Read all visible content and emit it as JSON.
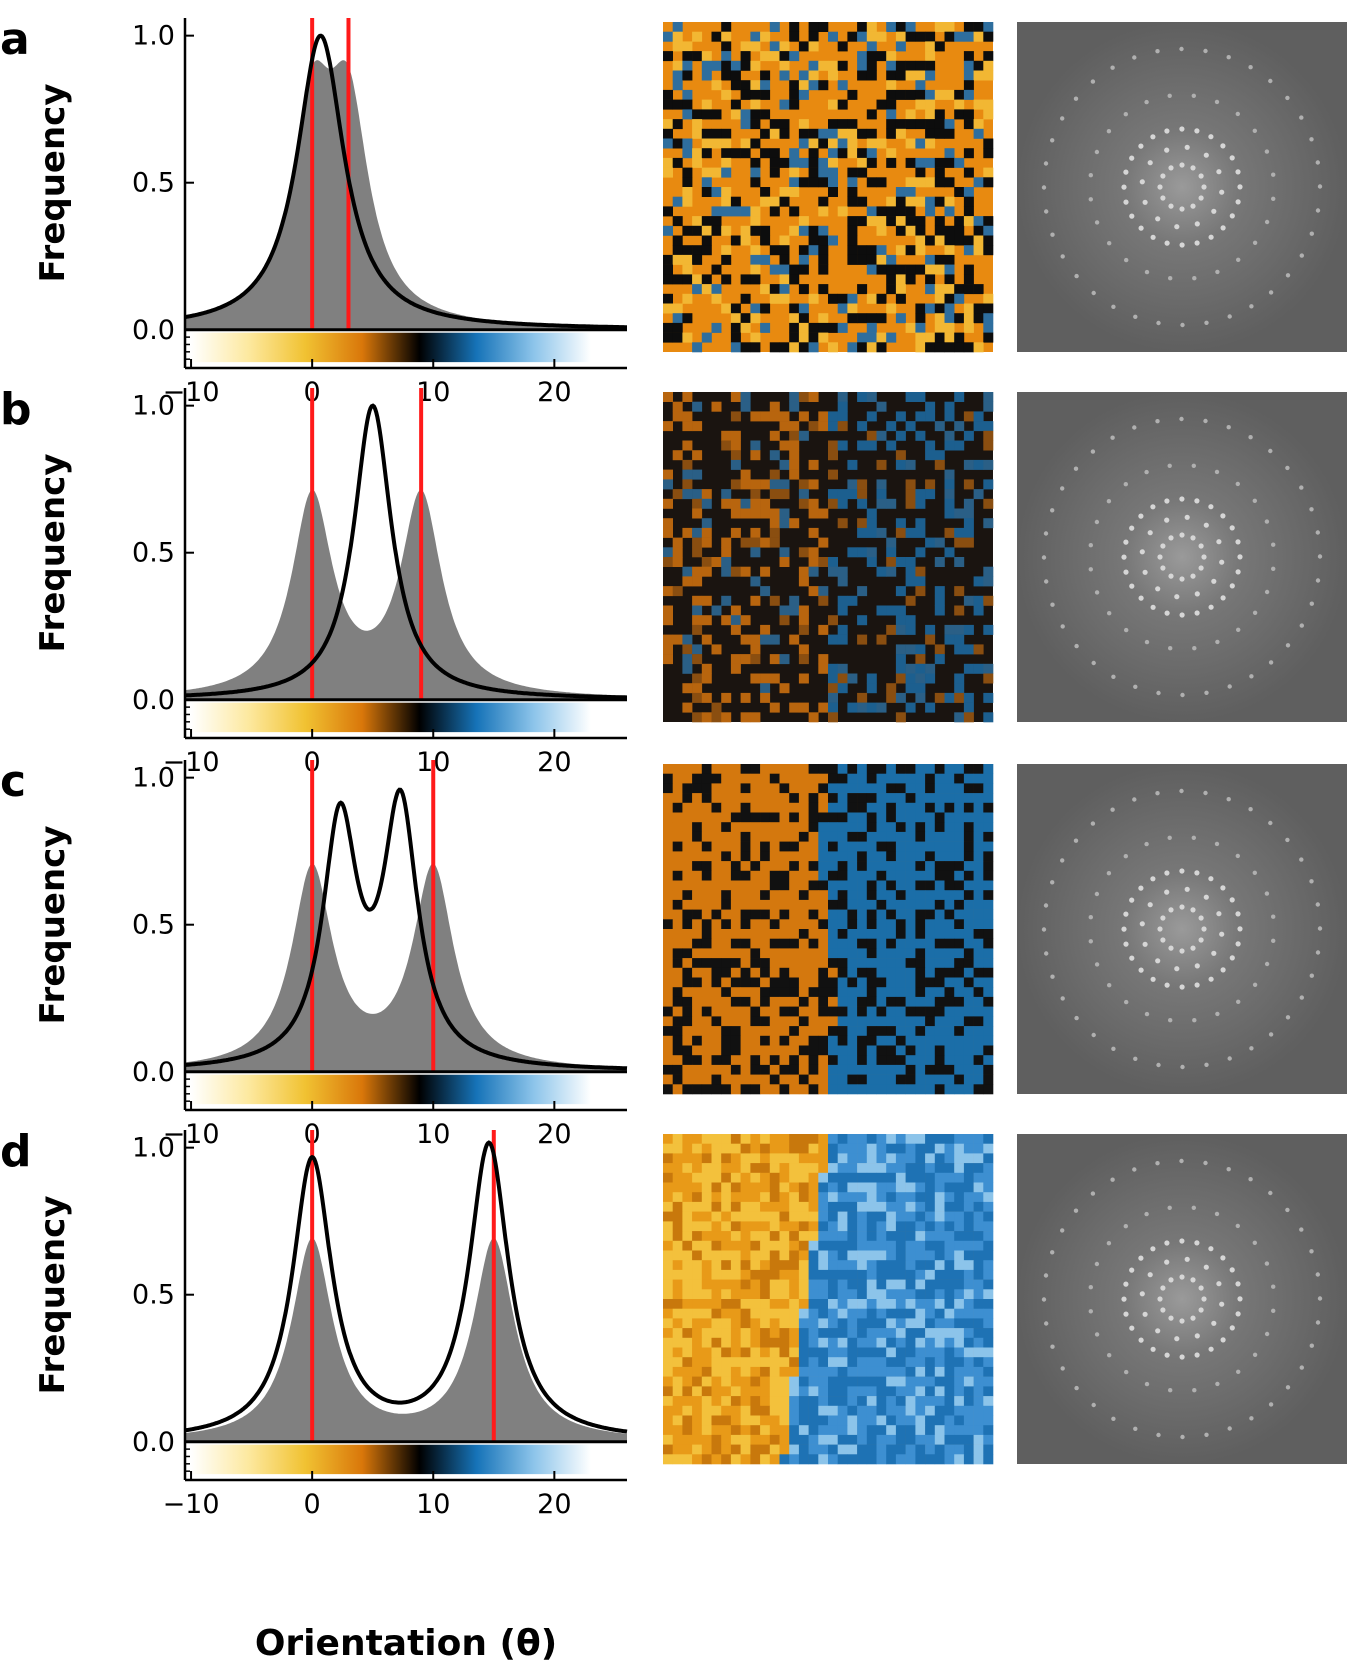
{
  "figure": {
    "xlabel": "Orientation (θ)",
    "ylabel": "Frequency",
    "x_ticks": [
      -10,
      0,
      10,
      20
    ],
    "x_tick_labels": [
      "−10",
      "0",
      "10",
      "20"
    ],
    "y_ticks": [
      0.0,
      0.5,
      1.0
    ],
    "y_tick_labels": [
      "0.0",
      "0.5",
      "1.0"
    ],
    "xlim": [
      -10.5,
      26
    ],
    "ylim": [
      -0.13,
      1.06
    ],
    "colorbar_colors": [
      "#ffffff",
      "#fde9a0",
      "#f1c232",
      "#d9770a",
      "#000000",
      "#1673b8",
      "#8cc4ea",
      "#ffffff"
    ],
    "grey_color": "#808080",
    "curve_color": "#000000",
    "marker_color": "#ff1a1a",
    "orange_color": "#e88a10",
    "blue_color": "#1f78b4"
  },
  "chart_data": [
    {
      "panel": "a",
      "type": "line",
      "title": "",
      "xlabel": "Orientation (θ)",
      "ylabel": "Frequency",
      "xlim": [
        -10.5,
        26
      ],
      "ylim": [
        -0.13,
        1.06
      ],
      "red_lines": [
        0,
        3
      ],
      "colorbar_range": [
        -10,
        23
      ],
      "series": [
        {
          "name": "histogram",
          "kind": "area",
          "components": [
            {
              "center": 0,
              "amp": 0.68,
              "width": 2.6
            },
            {
              "center": 3,
              "amp": 0.68,
              "width": 2.6
            }
          ]
        },
        {
          "name": "fit",
          "kind": "line",
          "components": [
            {
              "center": 0.7,
              "amp": 1.0,
              "width": 3.0
            }
          ]
        }
      ],
      "image_pattern": "mixed"
    },
    {
      "panel": "b",
      "type": "line",
      "title": "",
      "xlabel": "Orientation (θ)",
      "ylabel": "Frequency",
      "xlim": [
        -10.5,
        26
      ],
      "ylim": [
        -0.13,
        1.06
      ],
      "red_lines": [
        0,
        9
      ],
      "colorbar_range": [
        -10,
        23
      ],
      "series": [
        {
          "name": "histogram",
          "kind": "area",
          "components": [
            {
              "center": 0,
              "amp": 0.68,
              "width": 2.6
            },
            {
              "center": 9,
              "amp": 0.68,
              "width": 2.6
            }
          ]
        },
        {
          "name": "fit",
          "kind": "line",
          "components": [
            {
              "center": 5,
              "amp": 1.0,
              "width": 2.4
            }
          ]
        }
      ],
      "image_pattern": "dark"
    },
    {
      "panel": "c",
      "type": "line",
      "title": "",
      "xlabel": "Orientation (θ)",
      "ylabel": "Frequency",
      "xlim": [
        -10.5,
        26
      ],
      "ylim": [
        -0.13,
        1.06
      ],
      "red_lines": [
        0,
        10
      ],
      "colorbar_range": [
        -10,
        23
      ],
      "series": [
        {
          "name": "histogram",
          "kind": "area",
          "components": [
            {
              "center": 0,
              "amp": 0.68,
              "width": 2.6
            },
            {
              "center": 10,
              "amp": 0.68,
              "width": 2.6
            }
          ]
        },
        {
          "name": "fit",
          "kind": "line",
          "components": [
            {
              "center": 2.3,
              "amp": 0.82,
              "width": 2.2
            },
            {
              "center": 7.3,
              "amp": 0.87,
              "width": 2.2
            }
          ]
        }
      ],
      "image_pattern": "split"
    },
    {
      "panel": "d",
      "type": "line",
      "title": "",
      "xlabel": "Orientation (θ)",
      "ylabel": "Frequency",
      "xlim": [
        -10.5,
        26
      ],
      "ylim": [
        -0.13,
        1.06
      ],
      "red_lines": [
        0,
        15
      ],
      "colorbar_range": [
        -10,
        23
      ],
      "series": [
        {
          "name": "histogram",
          "kind": "area",
          "components": [
            {
              "center": 0,
              "amp": 0.68,
              "width": 2.6
            },
            {
              "center": 15,
              "amp": 0.68,
              "width": 2.6
            }
          ]
        },
        {
          "name": "fit",
          "kind": "line",
          "components": [
            {
              "center": 0,
              "amp": 0.95,
              "width": 2.5
            },
            {
              "center": 14.6,
              "amp": 1.0,
              "width": 2.5
            }
          ]
        }
      ],
      "image_pattern": "split-bright"
    }
  ]
}
